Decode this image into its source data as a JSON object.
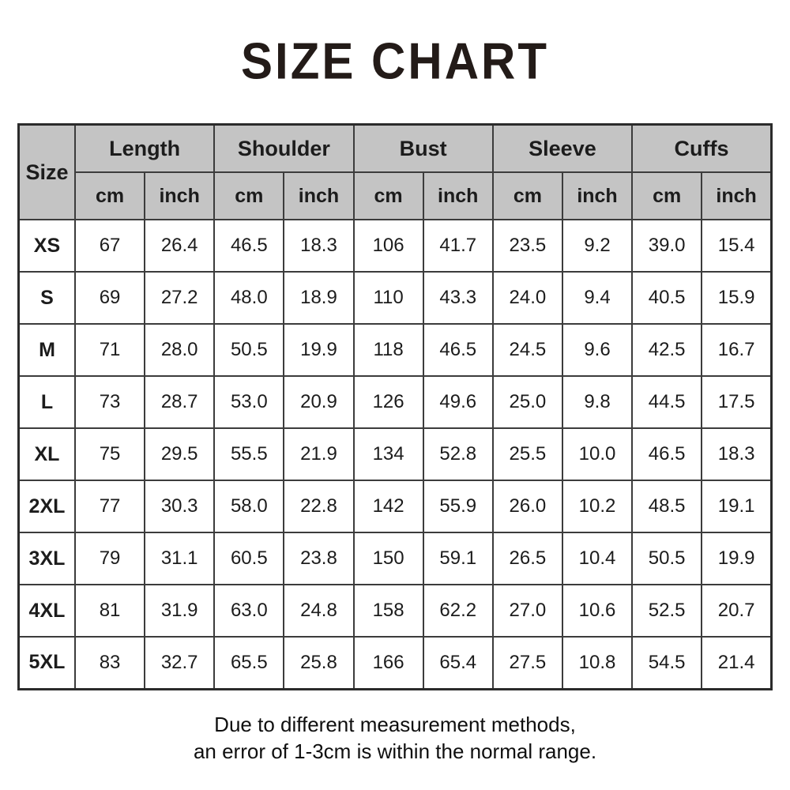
{
  "chart_data": {
    "type": "table",
    "title": "SIZE CHART",
    "corner_label": "Size",
    "column_groups": [
      "Length",
      "Shoulder",
      "Bust",
      "Sleeve",
      "Cuffs"
    ],
    "unit_labels": {
      "cm": "cm",
      "inch": "inch"
    },
    "rows": [
      {
        "size": "XS",
        "values": [
          "67",
          "26.4",
          "46.5",
          "18.3",
          "106",
          "41.7",
          "23.5",
          "9.2",
          "39.0",
          "15.4"
        ]
      },
      {
        "size": "S",
        "values": [
          "69",
          "27.2",
          "48.0",
          "18.9",
          "110",
          "43.3",
          "24.0",
          "9.4",
          "40.5",
          "15.9"
        ]
      },
      {
        "size": "M",
        "values": [
          "71",
          "28.0",
          "50.5",
          "19.9",
          "118",
          "46.5",
          "24.5",
          "9.6",
          "42.5",
          "16.7"
        ]
      },
      {
        "size": "L",
        "values": [
          "73",
          "28.7",
          "53.0",
          "20.9",
          "126",
          "49.6",
          "25.0",
          "9.8",
          "44.5",
          "17.5"
        ]
      },
      {
        "size": "XL",
        "values": [
          "75",
          "29.5",
          "55.5",
          "21.9",
          "134",
          "52.8",
          "25.5",
          "10.0",
          "46.5",
          "18.3"
        ]
      },
      {
        "size": "2XL",
        "values": [
          "77",
          "30.3",
          "58.0",
          "22.8",
          "142",
          "55.9",
          "26.0",
          "10.2",
          "48.5",
          "19.1"
        ]
      },
      {
        "size": "3XL",
        "values": [
          "79",
          "31.1",
          "60.5",
          "23.8",
          "150",
          "59.1",
          "26.5",
          "10.4",
          "50.5",
          "19.9"
        ]
      },
      {
        "size": "4XL",
        "values": [
          "81",
          "31.9",
          "63.0",
          "24.8",
          "158",
          "62.2",
          "27.0",
          "10.6",
          "52.5",
          "20.7"
        ]
      },
      {
        "size": "5XL",
        "values": [
          "83",
          "32.7",
          "65.5",
          "25.8",
          "166",
          "65.4",
          "27.5",
          "10.8",
          "54.5",
          "21.4"
        ]
      }
    ],
    "layout": {
      "header_rows": 2,
      "grid": "on",
      "units_per_group": 2
    }
  },
  "footer": {
    "line1": "Due to different measurement methods,",
    "line2": "an error of 1-3cm is within the normal range."
  },
  "colors": {
    "header_bg": "#c4c4c4",
    "border": "#3c3c3c",
    "outer_border": "#2b2b2b",
    "text": "#1c1c1c",
    "background": "#ffffff"
  }
}
